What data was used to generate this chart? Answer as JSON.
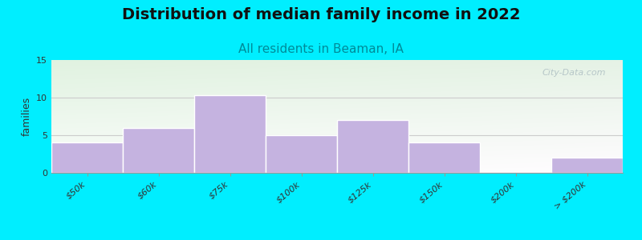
{
  "title": "Distribution of median family income in 2022",
  "subtitle": "All residents in Beaman, IA",
  "ylabel": "families",
  "categories": [
    "$50k",
    "$60k",
    "$75k",
    "$100k",
    "$125k",
    "$150k",
    "$200k",
    "> $200k"
  ],
  "values": [
    4,
    6,
    10.3,
    5,
    7,
    4,
    0,
    2
  ],
  "bar_color": "#c5b3e0",
  "bar_edgecolor": "#ffffff",
  "background_outer": "#00eeff",
  "bg_color_top_left": "#d6eed8",
  "bg_color_top_right": "#e8f4f0",
  "bg_color_bottom": "#f5f5f5",
  "title_fontsize": 14,
  "subtitle_fontsize": 11,
  "subtitle_color": "#008b99",
  "ylabel_fontsize": 9,
  "tick_fontsize": 8,
  "ylim": [
    0,
    15
  ],
  "yticks": [
    0,
    5,
    10,
    15
  ],
  "watermark": "City-Data.com",
  "bar_width": 1.0
}
